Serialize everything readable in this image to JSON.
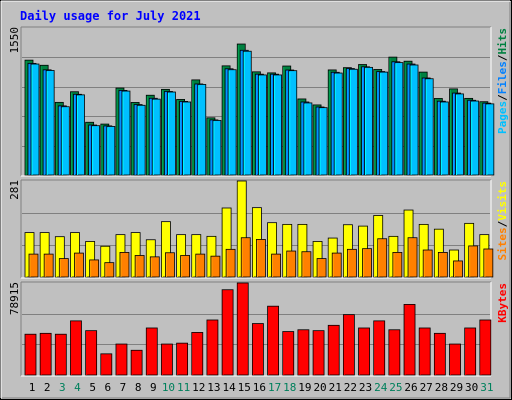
{
  "chart_data": [
    {
      "panel": "hits-files-pages",
      "type": "bar",
      "title": "Daily usage for July 2021",
      "x": [
        "1",
        "2",
        "3",
        "4",
        "5",
        "6",
        "7",
        "8",
        "9",
        "10",
        "11",
        "12",
        "13",
        "14",
        "15",
        "16",
        "17",
        "18",
        "19",
        "20",
        "21",
        "22",
        "23",
        "24",
        "25",
        "26",
        "27",
        "28",
        "29",
        "30",
        "31"
      ],
      "x_label_colors": {
        "weekday": "#000000",
        "weekend": "#00805c"
      },
      "weekend_days": [
        "3",
        "4",
        "10",
        "11",
        "17",
        "18",
        "24",
        "25",
        "31"
      ],
      "ylim": [
        0,
        1550
      ],
      "ymax_label": "1550",
      "series": [
        {
          "name": "Hits",
          "color": "#008040",
          "values": [
            1211,
            1157,
            766,
            878,
            556,
            537,
            917,
            765,
            841,
            903,
            797,
            1003,
            603,
            1151,
            1381,
            1088,
            1077,
            1149,
            802,
            739,
            1108,
            1132,
            1165,
            1113,
            1243,
            1200,
            1085,
            807,
            908,
            808,
            773
          ]
        },
        {
          "name": "Files",
          "color": "#0080ff",
          "values": [
            1177,
            1109,
            729,
            851,
            527,
            518,
            892,
            743,
            809,
            881,
            776,
            960,
            581,
            1120,
            1315,
            1063,
            1063,
            1107,
            770,
            717,
            1083,
            1123,
            1141,
            1091,
            1194,
            1170,
            1023,
            778,
            864,
            788,
            758
          ]
        },
        {
          "name": "Pages",
          "color": "#00c0ff",
          "values": [
            1170,
            1102,
            720,
            845,
            520,
            512,
            885,
            735,
            800,
            875,
            770,
            955,
            575,
            1110,
            1305,
            1055,
            1055,
            1100,
            760,
            710,
            1075,
            1115,
            1135,
            1085,
            1185,
            1160,
            1015,
            770,
            855,
            780,
            750
          ]
        }
      ],
      "legend": [
        {
          "text": "Pages",
          "color": "#00c0ff"
        },
        {
          "text": "/",
          "color": "#000000"
        },
        {
          "text": "Files",
          "color": "#0080ff"
        },
        {
          "text": "/",
          "color": "#000000"
        },
        {
          "text": "Hits",
          "color": "#008040"
        }
      ]
    },
    {
      "panel": "visits-sites",
      "type": "bar",
      "ylim": [
        0,
        281
      ],
      "ymax_label": "281",
      "series": [
        {
          "name": "Visits",
          "color": "#ffff00",
          "values": [
            130,
            130,
            118,
            130,
            104,
            90,
            124,
            130,
            109,
            162,
            124,
            124,
            119,
            202,
            281,
            203,
            159,
            154,
            154,
            104,
            114,
            153,
            149,
            180,
            119,
            196,
            154,
            140,
            79,
            157,
            124
          ]
        },
        {
          "name": "Sites",
          "color": "#ff8000",
          "values": [
            67,
            67,
            54,
            70,
            50,
            42,
            72,
            63,
            59,
            71,
            63,
            67,
            61,
            81,
            115,
            110,
            67,
            76,
            74,
            54,
            70,
            81,
            83,
            112,
            72,
            115,
            79,
            72,
            47,
            91,
            82
          ]
        }
      ],
      "legend": [
        {
          "text": "Sites",
          "color": "#ff8000"
        },
        {
          "text": "/",
          "color": "#000000"
        },
        {
          "text": "Visits",
          "color": "#ffff00"
        }
      ]
    },
    {
      "panel": "kbytes",
      "type": "bar",
      "ylim": [
        0,
        78915
      ],
      "ymax_label": "78915",
      "series": [
        {
          "name": "KBytes",
          "color": "#ff0000",
          "values": [
            34980,
            35744,
            34980,
            46428,
            38040,
            18156,
            26554,
            21211,
            40331,
            26554,
            27317,
            36507,
            47191,
            73143,
            78915,
            44138,
            59022,
            37270,
            38802,
            38040,
            42618,
            51770,
            40331,
            46428,
            38802,
            60547,
            40331,
            35744,
            26554,
            40331,
            47191
          ]
        }
      ],
      "legend": [
        {
          "text": "KBytes",
          "color": "#ff0000"
        }
      ]
    }
  ]
}
